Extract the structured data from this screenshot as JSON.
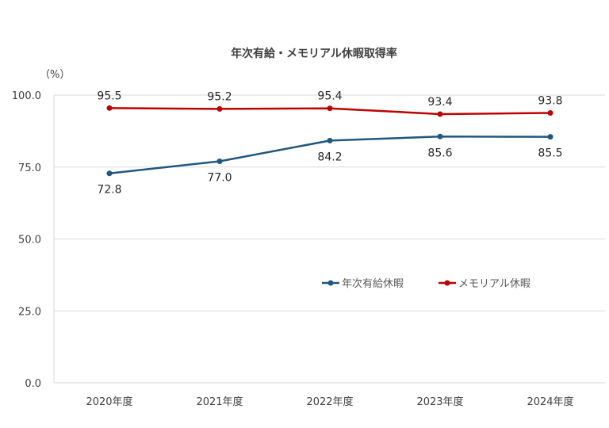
{
  "chart_data": {
    "type": "line",
    "title": "年次有給・メモリアル休暇取得率",
    "ylabel": "（%）",
    "xlabel": "",
    "ylim": [
      0,
      100
    ],
    "yticks": [
      0,
      25,
      50,
      75,
      100
    ],
    "ytick_labels": [
      "0.0",
      "25.0",
      "50.0",
      "75.0",
      "100.0"
    ],
    "categories": [
      "2020年度",
      "2021年度",
      "2022年度",
      "2023年度",
      "2024年度"
    ],
    "grid": true,
    "legend_position": "center-right",
    "series": [
      {
        "name": "年次有給休暇",
        "color": "#1f5780",
        "values": [
          72.8,
          77.0,
          84.2,
          85.6,
          85.5
        ],
        "labels": [
          "72.8",
          "77.0",
          "84.2",
          "85.6",
          "85.5"
        ],
        "label_position": "below"
      },
      {
        "name": "メモリアル休暇",
        "color": "#c00000",
        "values": [
          95.5,
          95.2,
          95.4,
          93.4,
          93.8
        ],
        "labels": [
          "95.5",
          "95.2",
          "95.4",
          "93.4",
          "93.8"
        ],
        "label_position": "above"
      }
    ]
  }
}
